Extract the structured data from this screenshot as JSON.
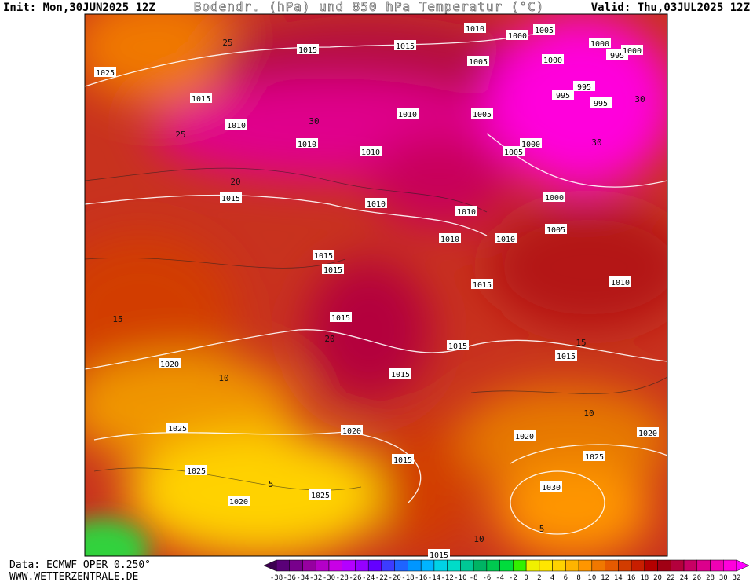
{
  "header": {
    "init": "Init: Mon,30JUN2025 12Z",
    "title": "Bodendr. (hPa) und 850 hPa Temperatur (°C)",
    "valid": "Valid: Thu,03JUL2025 12Z"
  },
  "footer": {
    "source": "Data: ECMWF OPER 0.250°",
    "url": "WWW.WETTERZENTRALE.DE"
  },
  "colorbar": {
    "ticks": [
      -38,
      -36,
      -34,
      -32,
      -30,
      -28,
      -26,
      -24,
      -22,
      -20,
      -18,
      -16,
      -14,
      -12,
      -10,
      -8,
      -6,
      -4,
      -2,
      0,
      2,
      4,
      6,
      8,
      10,
      12,
      14,
      16,
      18,
      20,
      22,
      24,
      26,
      28,
      30,
      32
    ],
    "colors": [
      "#3c0050",
      "#5a0078",
      "#78008c",
      "#9600a0",
      "#b400c8",
      "#c800e6",
      "#b400ff",
      "#9600ff",
      "#6400ff",
      "#3c3cff",
      "#1e64ff",
      "#0096ff",
      "#00b4ff",
      "#00d2e6",
      "#00dcc8",
      "#00c896",
      "#00b464",
      "#00c850",
      "#00dc3c",
      "#32f000",
      "#f0f000",
      "#ffe600",
      "#ffd200",
      "#ffb400",
      "#ff9600",
      "#f07800",
      "#e65a00",
      "#d23c00",
      "#c81e00",
      "#b40000",
      "#a00014",
      "#b4003c",
      "#c80064",
      "#dc008c",
      "#f000b4",
      "#ff00dc",
      "#ff00ff"
    ]
  },
  "isobar_labels": [
    "1015",
    "1015",
    "1010",
    "1000",
    "1005",
    "1000",
    "995",
    "1000",
    "1000",
    "1005",
    "1025",
    "1015",
    "995",
    "995",
    "995",
    "1010",
    "1010",
    "1005",
    "1010",
    "1010",
    "1005",
    "1000",
    "1015",
    "1000",
    "1010",
    "1010",
    "1005",
    "1010",
    "1010",
    "1015",
    "1015",
    "1015",
    "1010",
    "1015",
    "1015",
    "1015",
    "1020",
    "1015",
    "1025",
    "1020",
    "1020",
    "1020",
    "1015",
    "1025",
    "1025",
    "1030",
    "1025",
    "1020",
    "1015"
  ],
  "isotherm_labels": [
    "25",
    "30",
    "30",
    "25",
    "20",
    "20",
    "15",
    "15",
    "10",
    "10",
    "5",
    "5",
    "10",
    "30"
  ]
}
